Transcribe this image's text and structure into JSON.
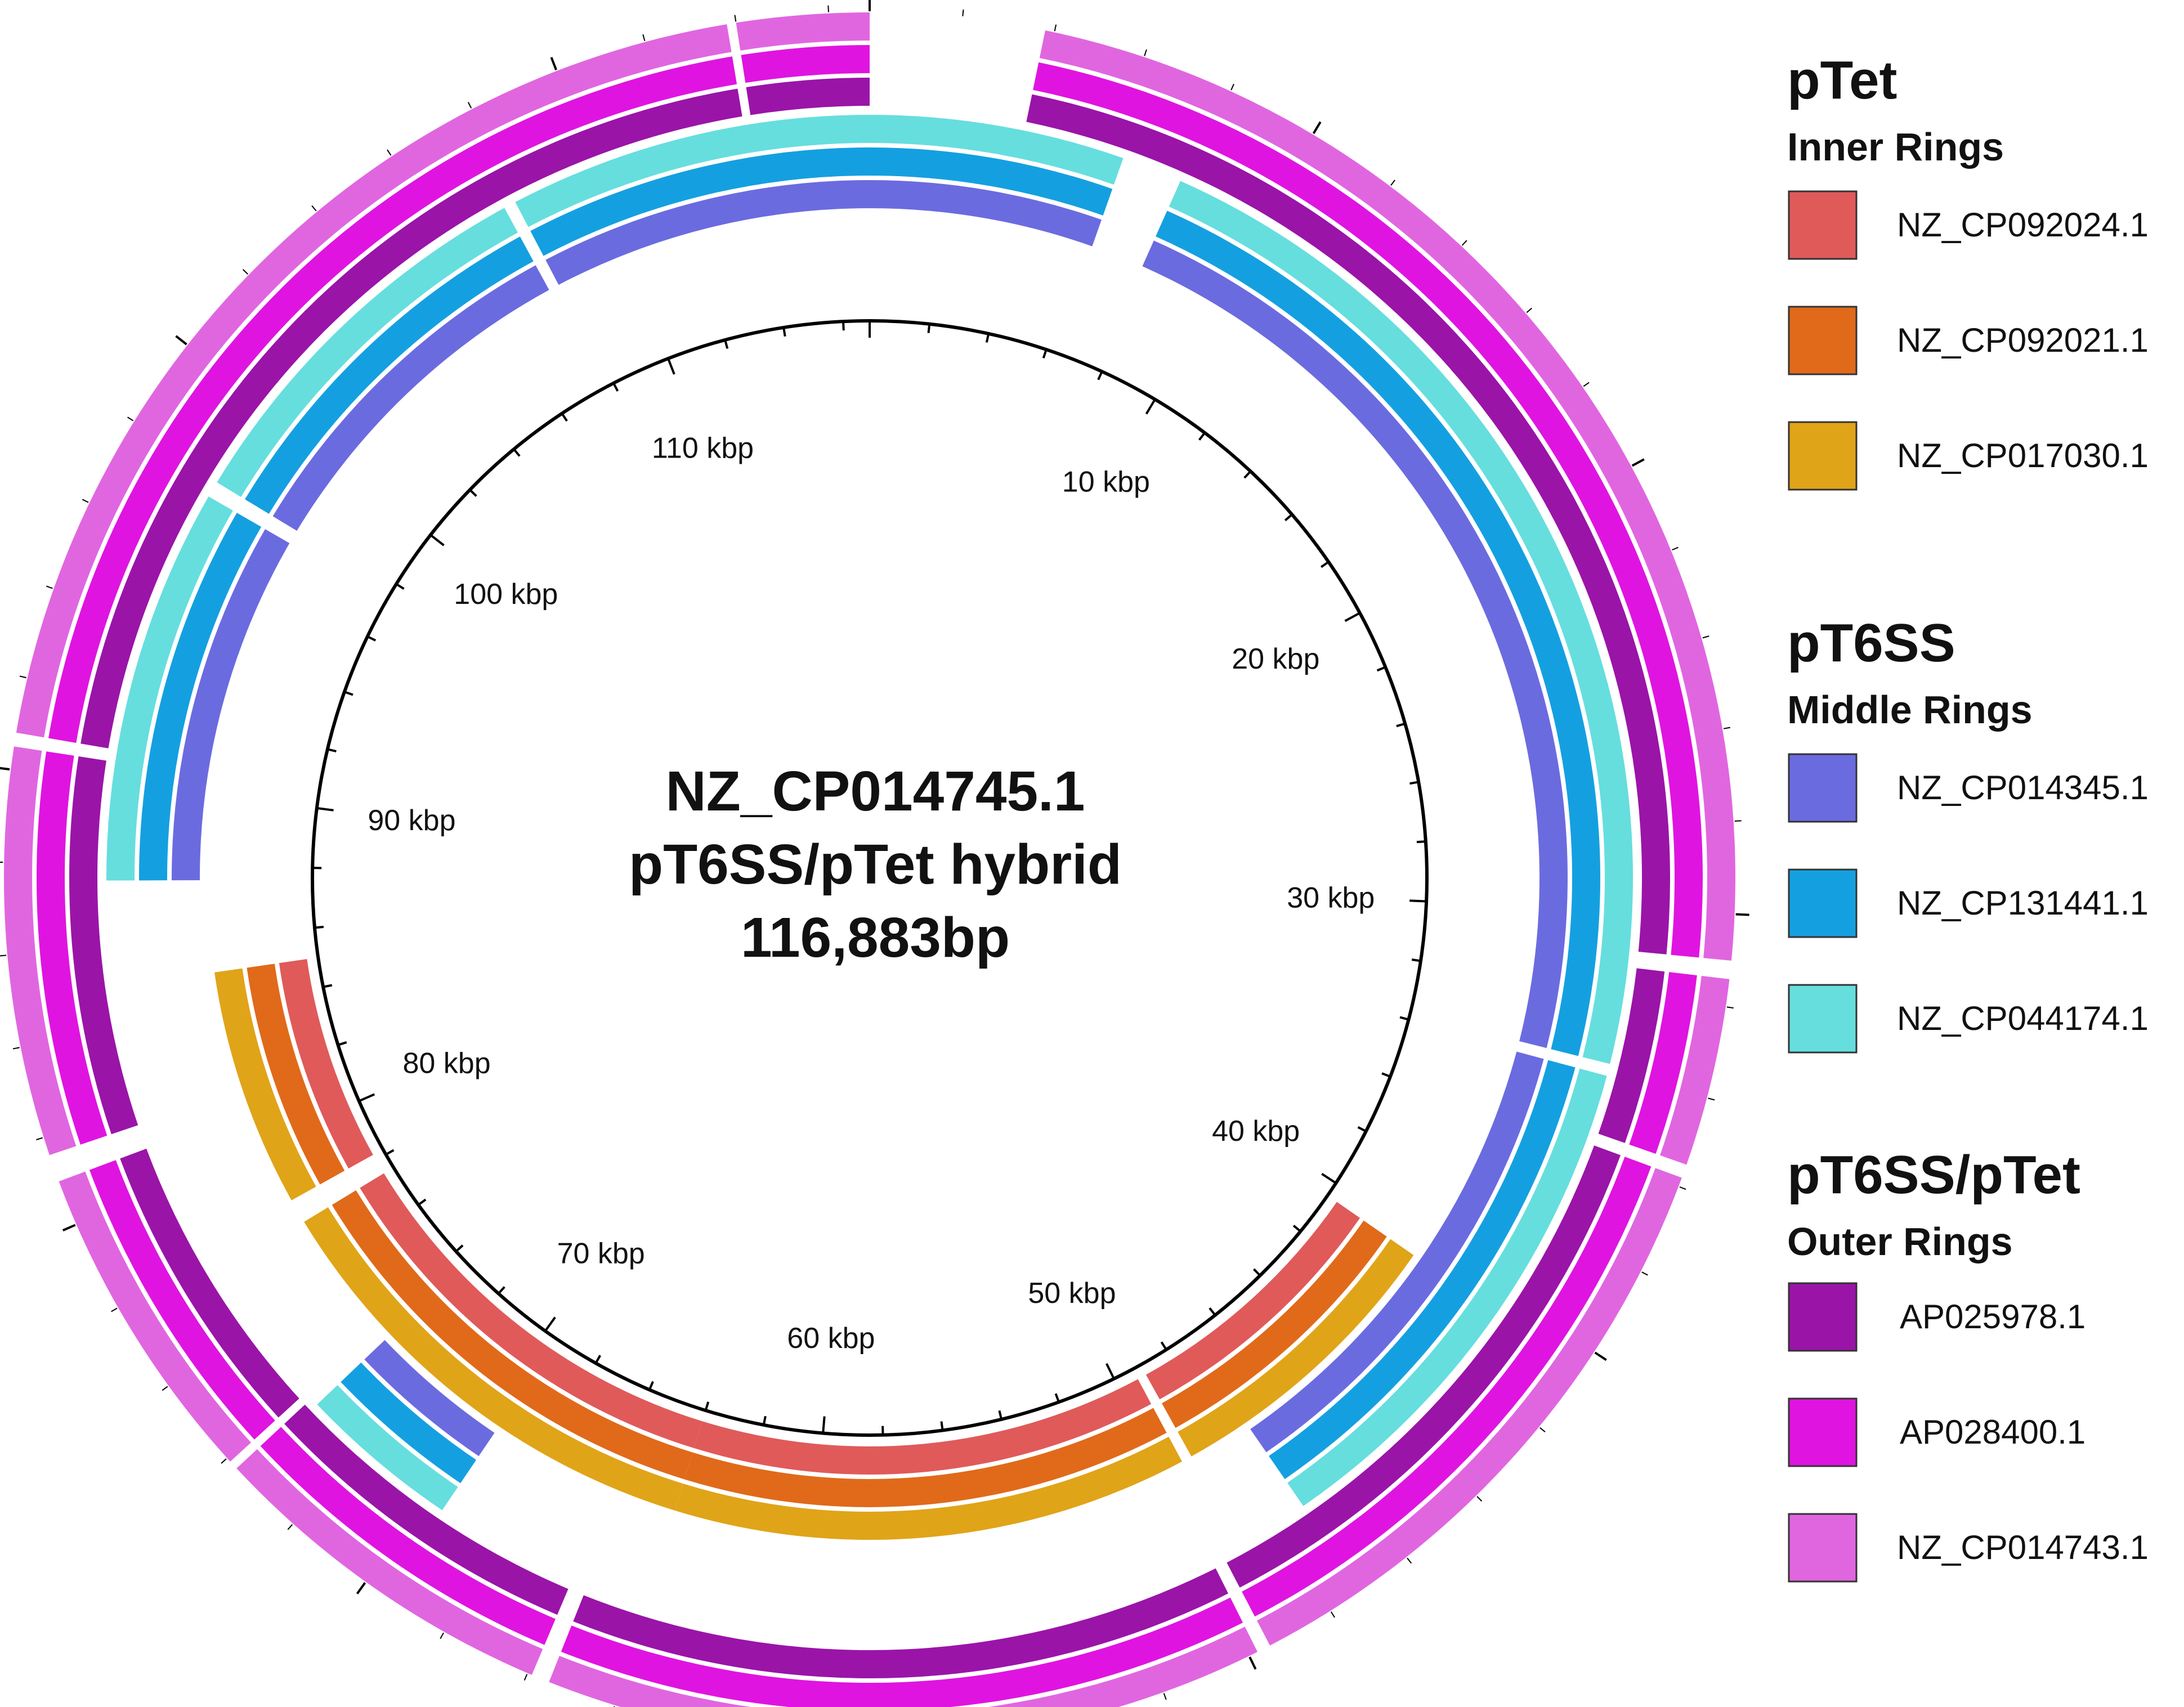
{
  "figure": {
    "center_title_lines": [
      "NZ_CP014745.1",
      "pT6SS/pTet hybrid",
      "116,883bp"
    ],
    "sequence_length_bp": 116883
  },
  "scale": {
    "tick_labels": [
      "10 kbp",
      "20 kbp",
      "30 kbp",
      "40 kbp",
      "50 kbp",
      "60 kbp",
      "70 kbp",
      "80 kbp",
      "90 kbp",
      "100 kbp",
      "110 kbp"
    ],
    "tick_values_kbp": [
      10,
      20,
      30,
      40,
      50,
      60,
      70,
      80,
      90,
      100,
      110
    ]
  },
  "legend": [
    {
      "heading": "pTet",
      "subheading": "Inner Rings",
      "entries": [
        {
          "label": "NZ_CP092024.1",
          "color": "#E05A5A"
        },
        {
          "label": "NZ_CP092021.1",
          "color": "#E06A1A"
        },
        {
          "label": "NZ_CP017030.1",
          "color": "#E0A418"
        }
      ]
    },
    {
      "heading": "pT6SS",
      "subheading": "Middle Rings",
      "entries": [
        {
          "label": "NZ_CP014345.1",
          "color": "#6B6BE0"
        },
        {
          "label": "NZ_CP131441.1",
          "color": "#14A0E0"
        },
        {
          "label": "NZ_CP044174.1",
          "color": "#66DEDE"
        }
      ]
    },
    {
      "heading": "pT6SS/pTet",
      "subheading": "Outer Rings",
      "entries": [
        {
          "label": "AP025978.1",
          "color": "#9A14A8"
        },
        {
          "label": "AP028400.1",
          "color": "#E014E0"
        },
        {
          "label": "NZ_CP014743.1",
          "color": "#E066E0"
        }
      ]
    }
  ],
  "chart_data": {
    "type": "circular-blast-ring",
    "genome_length_kbp": 116.883,
    "rings": [
      {
        "name": "NZ_CP092024.1",
        "group": "pTet",
        "color": "#E05A5A",
        "segments_kbp": [
          [
            40.5,
            49.0
          ],
          [
            49.3,
            64.0
          ],
          [
            64.0,
            77.5
          ],
          [
            78.2,
            85.0
          ]
        ]
      },
      {
        "name": "NZ_CP092021.1",
        "group": "pTet",
        "color": "#E06A1A",
        "segments_kbp": [
          [
            40.5,
            49.0
          ],
          [
            49.3,
            64.0
          ],
          [
            64.0,
            77.5
          ],
          [
            78.2,
            85.0
          ]
        ]
      },
      {
        "name": "NZ_CP017030.1",
        "group": "pTet",
        "color": "#E0A418",
        "segments_kbp": [
          [
            40.5,
            49.0
          ],
          [
            49.3,
            64.0
          ],
          [
            64.0,
            77.5
          ],
          [
            78.2,
            85.0
          ]
        ]
      },
      {
        "name": "NZ_CP014345.1",
        "group": "pT6SS",
        "color": "#6B6BE0",
        "segments_kbp": [
          [
            0.0,
            6.3
          ],
          [
            7.8,
            33.8
          ],
          [
            34.1,
            47.2
          ],
          [
            69.5,
            73.5
          ],
          [
            87.6,
            97.4
          ],
          [
            97.8,
            107.6
          ],
          [
            107.9,
            116.883
          ]
        ]
      },
      {
        "name": "NZ_CP131441.1",
        "group": "pT6SS",
        "color": "#14A0E0",
        "segments_kbp": [
          [
            0.0,
            6.3
          ],
          [
            7.8,
            33.8
          ],
          [
            34.1,
            47.2
          ],
          [
            69.5,
            73.5
          ],
          [
            87.6,
            97.4
          ],
          [
            97.8,
            107.6
          ],
          [
            107.9,
            116.883
          ]
        ]
      },
      {
        "name": "NZ_CP044174.1",
        "group": "pT6SS",
        "color": "#66DEDE",
        "segments_kbp": [
          [
            0.0,
            6.3
          ],
          [
            7.8,
            33.8
          ],
          [
            34.1,
            47.2
          ],
          [
            69.5,
            73.5
          ],
          [
            87.6,
            97.4
          ],
          [
            97.8,
            107.6
          ],
          [
            107.9,
            116.883
          ]
        ]
      },
      {
        "name": "AP025978.1",
        "group": "pT6SS/pTet",
        "color": "#9A14A8",
        "segments_kbp": [
          [
            3.8,
            31.0
          ],
          [
            31.4,
            35.5
          ],
          [
            35.8,
            49.5
          ],
          [
            49.8,
            65.5
          ],
          [
            65.9,
            73.7
          ],
          [
            73.9,
            81.0
          ],
          [
            81.6,
            90.5
          ],
          [
            90.8,
            113.8
          ],
          [
            114.0,
            116.883
          ]
        ]
      },
      {
        "name": "AP028400.1",
        "group": "pT6SS/pTet",
        "color": "#E014E0",
        "segments_kbp": [
          [
            3.8,
            31.0
          ],
          [
            31.4,
            35.5
          ],
          [
            35.8,
            49.5
          ],
          [
            49.8,
            65.5
          ],
          [
            65.9,
            73.7
          ],
          [
            73.9,
            81.0
          ],
          [
            81.6,
            90.5
          ],
          [
            90.8,
            113.8
          ],
          [
            114.0,
            116.883
          ]
        ]
      },
      {
        "name": "NZ_CP014743.1",
        "group": "pT6SS/pTet",
        "color": "#E066E0",
        "segments_kbp": [
          [
            3.8,
            31.0
          ],
          [
            31.4,
            35.5
          ],
          [
            35.8,
            49.5
          ],
          [
            49.8,
            65.5
          ],
          [
            65.9,
            73.7
          ],
          [
            73.9,
            81.0
          ],
          [
            81.6,
            90.5
          ],
          [
            90.8,
            113.8
          ],
          [
            114.0,
            116.883
          ]
        ]
      }
    ]
  }
}
